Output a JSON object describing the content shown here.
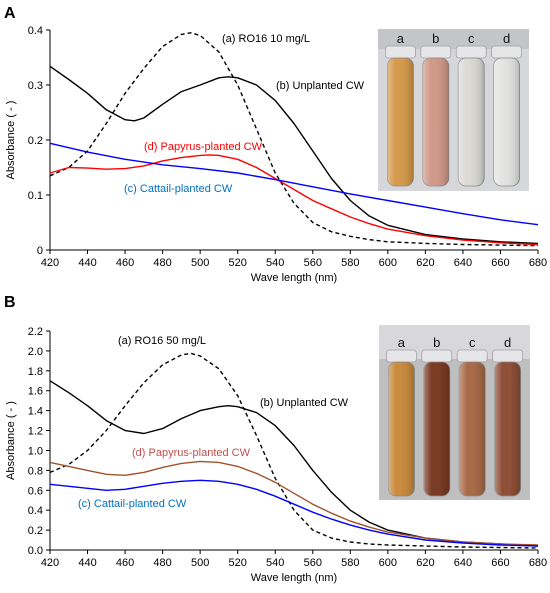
{
  "chart_data": [
    {
      "panel_label": "A",
      "type": "line",
      "xlabel": "Wave length (nm)",
      "ylabel": "Absorbance  ( - )",
      "xlim": [
        420,
        680
      ],
      "ylim": [
        0,
        0.4
      ],
      "xticks": [
        420,
        440,
        460,
        480,
        500,
        520,
        540,
        560,
        580,
        600,
        620,
        640,
        660,
        680
      ],
      "yticks": [
        0,
        0.1,
        0.2,
        0.3,
        0.4
      ],
      "ytick_labels": [
        "0",
        "0.1",
        "0.2",
        "0.3",
        "0.4"
      ],
      "grid": false,
      "series": [
        {
          "name": "(a) RO16  10 mg/L",
          "color": "#000000",
          "dash": true,
          "x": [
            420,
            430,
            440,
            450,
            460,
            470,
            480,
            490,
            495,
            500,
            510,
            520,
            530,
            540,
            550,
            560,
            570,
            580,
            590,
            600,
            620,
            640,
            660,
            680
          ],
          "y": [
            0.135,
            0.15,
            0.18,
            0.23,
            0.285,
            0.33,
            0.37,
            0.392,
            0.395,
            0.39,
            0.36,
            0.3,
            0.22,
            0.14,
            0.085,
            0.05,
            0.033,
            0.025,
            0.019,
            0.015,
            0.012,
            0.01,
            0.009,
            0.008
          ]
        },
        {
          "name": "(b) Unplanted CW",
          "color": "#000000",
          "dash": false,
          "x": [
            420,
            430,
            440,
            450,
            460,
            465,
            470,
            480,
            490,
            500,
            510,
            515,
            520,
            530,
            540,
            550,
            560,
            570,
            580,
            590,
            600,
            620,
            640,
            660,
            680
          ],
          "y": [
            0.334,
            0.31,
            0.285,
            0.255,
            0.237,
            0.235,
            0.24,
            0.265,
            0.288,
            0.3,
            0.313,
            0.315,
            0.313,
            0.3,
            0.272,
            0.23,
            0.18,
            0.13,
            0.09,
            0.062,
            0.045,
            0.028,
            0.02,
            0.015,
            0.012
          ]
        },
        {
          "name": "(d) Papyrus-planted CW",
          "color": "#ff0000",
          "dash": false,
          "x": [
            420,
            430,
            440,
            450,
            460,
            470,
            480,
            490,
            500,
            505,
            510,
            520,
            530,
            540,
            550,
            560,
            570,
            580,
            590,
            600,
            620,
            640,
            660,
            680
          ],
          "y": [
            0.14,
            0.15,
            0.149,
            0.147,
            0.148,
            0.153,
            0.162,
            0.168,
            0.172,
            0.173,
            0.172,
            0.165,
            0.15,
            0.13,
            0.11,
            0.09,
            0.075,
            0.06,
            0.048,
            0.038,
            0.026,
            0.018,
            0.013,
            0.01
          ]
        },
        {
          "name": "(c) Cattail-planted CW",
          "color": "#0000ff",
          "dash": false,
          "x": [
            420,
            440,
            460,
            480,
            500,
            520,
            540,
            560,
            580,
            600,
            620,
            640,
            660,
            680
          ],
          "y": [
            0.194,
            0.178,
            0.165,
            0.155,
            0.148,
            0.14,
            0.128,
            0.115,
            0.102,
            0.09,
            0.078,
            0.066,
            0.055,
            0.046
          ]
        }
      ],
      "annotations": {
        "a": "(a) RO16  10 mg/L",
        "b": "(b) Unplanted CW",
        "c": "(c) Cattail-planted CW",
        "d": "(d) Papyrus-planted CW"
      },
      "photo": {
        "labels": [
          "a",
          "b",
          "c",
          "d"
        ],
        "tube_colors": [
          "#d69a4c",
          "#d19a8a",
          "#dcdbd6",
          "#e4e4e2"
        ]
      }
    },
    {
      "panel_label": "B",
      "type": "line",
      "xlabel": "Wave length (nm)",
      "ylabel": "Absorbance  ( - )",
      "xlim": [
        420,
        680
      ],
      "ylim": [
        0,
        2.2
      ],
      "xticks": [
        420,
        440,
        460,
        480,
        500,
        520,
        540,
        560,
        580,
        600,
        620,
        640,
        660,
        680
      ],
      "yticks": [
        0,
        0.2,
        0.4,
        0.6,
        0.8,
        1.0,
        1.2,
        1.4,
        1.6,
        1.8,
        2.0,
        2.2
      ],
      "ytick_labels": [
        "0.0",
        "0.2",
        "0.4",
        "0.6",
        "0.8",
        "1.0",
        "1.2",
        "1.4",
        "1.6",
        "1.8",
        "2.0",
        "2.2"
      ],
      "grid": false,
      "series": [
        {
          "name": "(a) RO16  50 mg/L",
          "color": "#000000",
          "dash": true,
          "x": [
            420,
            430,
            440,
            450,
            460,
            470,
            480,
            490,
            495,
            500,
            510,
            520,
            530,
            540,
            550,
            560,
            570,
            580,
            590,
            600,
            620,
            640,
            660,
            680
          ],
          "y": [
            0.78,
            0.86,
            1.0,
            1.2,
            1.45,
            1.68,
            1.86,
            1.96,
            1.975,
            1.95,
            1.82,
            1.55,
            1.15,
            0.72,
            0.4,
            0.2,
            0.12,
            0.08,
            0.06,
            0.05,
            0.04,
            0.03,
            0.025,
            0.02
          ]
        },
        {
          "name": "(b) Unplanted CW",
          "color": "#000000",
          "dash": false,
          "x": [
            420,
            430,
            440,
            450,
            460,
            470,
            480,
            490,
            500,
            510,
            515,
            520,
            530,
            540,
            550,
            560,
            570,
            580,
            590,
            600,
            620,
            640,
            660,
            680
          ],
          "y": [
            1.7,
            1.58,
            1.45,
            1.3,
            1.2,
            1.17,
            1.22,
            1.32,
            1.4,
            1.44,
            1.45,
            1.44,
            1.38,
            1.25,
            1.05,
            0.8,
            0.58,
            0.4,
            0.28,
            0.2,
            0.12,
            0.08,
            0.06,
            0.04
          ]
        },
        {
          "name": "(d) Papyrus-planted CW",
          "color": "#a0522d",
          "dash": false,
          "x": [
            420,
            430,
            440,
            450,
            460,
            470,
            480,
            490,
            500,
            510,
            520,
            530,
            540,
            550,
            560,
            570,
            580,
            590,
            600,
            620,
            640,
            660,
            680
          ],
          "y": [
            0.88,
            0.84,
            0.8,
            0.76,
            0.75,
            0.78,
            0.83,
            0.87,
            0.89,
            0.88,
            0.84,
            0.77,
            0.68,
            0.57,
            0.46,
            0.37,
            0.29,
            0.23,
            0.18,
            0.12,
            0.08,
            0.06,
            0.05
          ]
        },
        {
          "name": "(c) Cattail-planted CW",
          "color": "#0000ff",
          "dash": false,
          "x": [
            420,
            430,
            440,
            450,
            460,
            470,
            480,
            490,
            500,
            510,
            520,
            530,
            540,
            550,
            560,
            570,
            580,
            590,
            600,
            620,
            640,
            660,
            680
          ],
          "y": [
            0.66,
            0.64,
            0.62,
            0.6,
            0.61,
            0.64,
            0.67,
            0.69,
            0.7,
            0.69,
            0.66,
            0.61,
            0.54,
            0.46,
            0.38,
            0.31,
            0.25,
            0.2,
            0.16,
            0.1,
            0.07,
            0.05,
            0.04
          ]
        }
      ],
      "annotations": {
        "a": "(a) RO16  50 mg/L",
        "b": "(b) Unplanted CW",
        "c": "(c) Cattail-planted CW",
        "d": "(d) Papyrus-planted CW"
      },
      "photo": {
        "labels": [
          "a",
          "b",
          "c",
          "d"
        ],
        "tube_colors": [
          "#c98a3c",
          "#7a3a22",
          "#a86a48",
          "#8e4e36"
        ]
      }
    }
  ]
}
